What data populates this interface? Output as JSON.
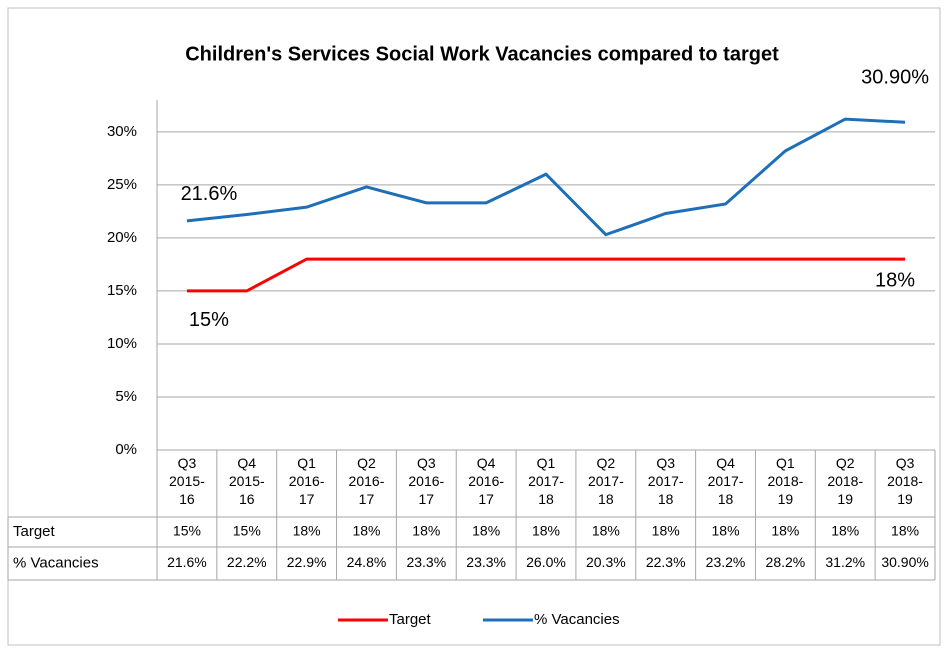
{
  "chart_data": {
    "type": "line",
    "title": "Children's Services Social  Work Vacancies compared to target",
    "categories": [
      "Q3 2015-16",
      "Q4 2015-16",
      "Q1 2016-17",
      "Q2 2016-17",
      "Q3 2016-17",
      "Q4 2016-17",
      "Q1 2017-18",
      "Q2 2017-18",
      "Q3 2017-18",
      "Q4 2017-18",
      "Q1 2018-19",
      "Q2 2018-19",
      "Q3 2018-19"
    ],
    "series": [
      {
        "name": "Target",
        "color": "#ff0000",
        "values": [
          15,
          15,
          18,
          18,
          18,
          18,
          18,
          18,
          18,
          18,
          18,
          18,
          18
        ],
        "value_labels": [
          "15%",
          "15%",
          "18%",
          "18%",
          "18%",
          "18%",
          "18%",
          "18%",
          "18%",
          "18%",
          "18%",
          "18%",
          "18%"
        ]
      },
      {
        "name": "% Vacancies",
        "color": "#1f6fb8",
        "values": [
          21.6,
          22.2,
          22.9,
          24.8,
          23.3,
          23.3,
          26.0,
          20.3,
          22.3,
          23.2,
          28.2,
          31.2,
          30.9
        ],
        "value_labels": [
          "21.6%",
          "22.2%",
          "22.9%",
          "24.8%",
          "23.3%",
          "23.3%",
          "26.0%",
          "20.3%",
          "22.3%",
          "23.2%",
          "28.2%",
          "31.2%",
          "30.90%"
        ]
      }
    ],
    "ylim": [
      0,
      33
    ],
    "yticks": [
      {
        "value": 0,
        "label": "0%"
      },
      {
        "value": 5,
        "label": "5%"
      },
      {
        "value": 10,
        "label": "10%"
      },
      {
        "value": 15,
        "label": "15%"
      },
      {
        "value": 20,
        "label": "20%"
      },
      {
        "value": 25,
        "label": "25%"
      },
      {
        "value": 30,
        "label": "30%"
      }
    ],
    "grid": true,
    "legend": "bottom"
  }
}
